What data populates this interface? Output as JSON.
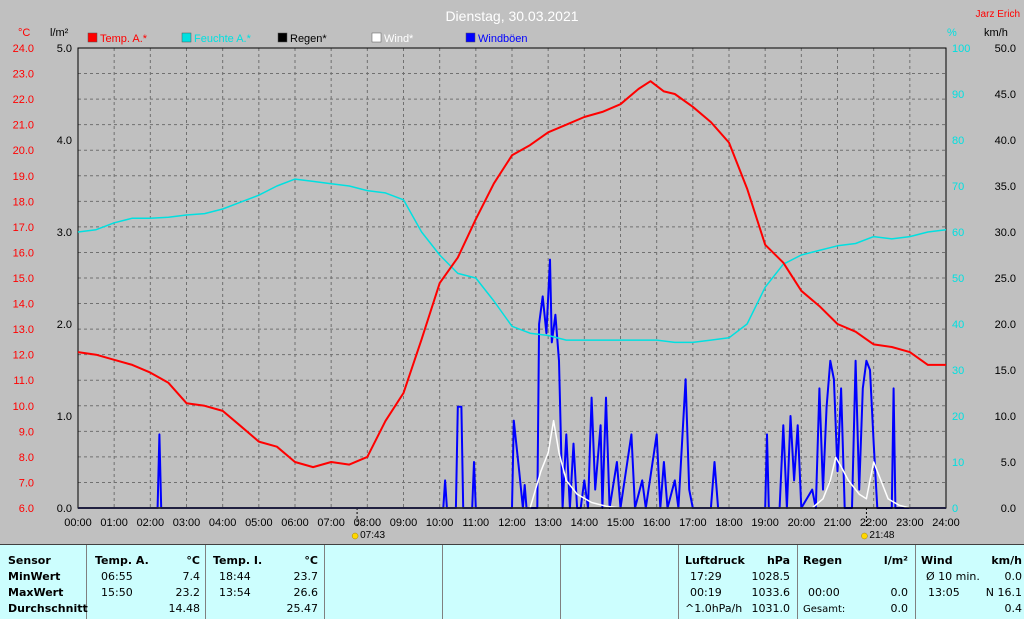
{
  "header": {
    "title": "Dienstag, 30.03.2021",
    "author": "Jarz Erich"
  },
  "legend": [
    {
      "label": "Temp. A.*",
      "color": "#ff0000"
    },
    {
      "label": "Feuchte A.*",
      "color": "#00e0e0"
    },
    {
      "label": "Regen*",
      "color": "#000000"
    },
    {
      "label": "Wind*",
      "color": "#ffffff"
    },
    {
      "label": "Windböen",
      "color": "#0000ff"
    }
  ],
  "axes": {
    "temp_unit": "°C",
    "rain_unit": "l/m²",
    "hum_unit": "%",
    "wind_unit": "km/h",
    "temp_ticks": [
      "24.0",
      "23.0",
      "22.0",
      "21.0",
      "20.0",
      "19.0",
      "18.0",
      "17.0",
      "16.0",
      "15.0",
      "14.0",
      "13.0",
      "12.0",
      "11.0",
      "10.0",
      "9.0",
      "8.0",
      "7.0",
      "6.0"
    ],
    "rain_ticks": [
      "5.0",
      "4.0",
      "3.0",
      "2.0",
      "1.0",
      "0.0"
    ],
    "hum_ticks": [
      "100",
      "90",
      "80",
      "70",
      "60",
      "50",
      "40",
      "30",
      "20",
      "10",
      "0"
    ],
    "wind_ticks": [
      "50.0",
      "45.0",
      "40.0",
      "35.0",
      "30.0",
      "25.0",
      "20.0",
      "15.0",
      "10.0",
      "5.0",
      "0.0"
    ],
    "x_ticks": [
      "00:00",
      "01:00",
      "02:00",
      "03:00",
      "04:00",
      "05:00",
      "06:00",
      "07:00",
      "08:00",
      "09:00",
      "10:00",
      "11:00",
      "12:00",
      "13:00",
      "14:00",
      "15:00",
      "16:00",
      "17:00",
      "18:00",
      "19:00",
      "20:00",
      "21:00",
      "22:00",
      "23:00",
      "24:00"
    ],
    "sunrise": "07:43",
    "sunset": "21:48"
  },
  "chart_data": {
    "type": "line",
    "title": "Dienstag, 30.03.2021",
    "x_unit": "hours",
    "temp_range": [
      6,
      24
    ],
    "humidity_range": [
      0,
      100
    ],
    "rain_range": [
      0,
      5
    ],
    "wind_range": [
      0,
      50
    ],
    "series": [
      {
        "name": "Temp. A.*",
        "unit": "°C",
        "color": "#ff0000",
        "points": [
          [
            0,
            12.1
          ],
          [
            0.5,
            12.0
          ],
          [
            1,
            11.8
          ],
          [
            1.5,
            11.6
          ],
          [
            2,
            11.3
          ],
          [
            2.5,
            10.9
          ],
          [
            3,
            10.1
          ],
          [
            3.5,
            10.0
          ],
          [
            4,
            9.8
          ],
          [
            4.5,
            9.2
          ],
          [
            5,
            8.6
          ],
          [
            5.5,
            8.4
          ],
          [
            6,
            7.8
          ],
          [
            6.5,
            7.6
          ],
          [
            7,
            7.8
          ],
          [
            7.5,
            7.7
          ],
          [
            8,
            8.0
          ],
          [
            8.5,
            9.4
          ],
          [
            9,
            10.5
          ],
          [
            9.5,
            12.6
          ],
          [
            10,
            14.8
          ],
          [
            10.5,
            15.8
          ],
          [
            11,
            17.3
          ],
          [
            11.5,
            18.7
          ],
          [
            12,
            19.8
          ],
          [
            12.5,
            20.2
          ],
          [
            13,
            20.7
          ],
          [
            13.5,
            21.0
          ],
          [
            14,
            21.3
          ],
          [
            14.5,
            21.5
          ],
          [
            15,
            21.8
          ],
          [
            15.5,
            22.4
          ],
          [
            15.83,
            22.7
          ],
          [
            16.2,
            22.3
          ],
          [
            16.5,
            22.2
          ],
          [
            17,
            21.7
          ],
          [
            17.5,
            21.1
          ],
          [
            18,
            20.3
          ],
          [
            18.5,
            18.5
          ],
          [
            19,
            16.3
          ],
          [
            19.5,
            15.6
          ],
          [
            20,
            14.5
          ],
          [
            20.5,
            13.9
          ],
          [
            21,
            13.2
          ],
          [
            21.5,
            12.9
          ],
          [
            22,
            12.4
          ],
          [
            22.5,
            12.3
          ],
          [
            23,
            12.1
          ],
          [
            23.5,
            11.6
          ],
          [
            24,
            11.6
          ]
        ]
      },
      {
        "name": "Feuchte A.*",
        "unit": "%",
        "color": "#00e0e0",
        "points": [
          [
            0,
            60
          ],
          [
            0.5,
            60.5
          ],
          [
            1,
            62
          ],
          [
            1.5,
            63
          ],
          [
            2,
            63
          ],
          [
            2.5,
            63.2
          ],
          [
            3,
            63.7
          ],
          [
            3.5,
            64
          ],
          [
            4,
            65
          ],
          [
            4.5,
            66.5
          ],
          [
            5,
            68
          ],
          [
            5.5,
            70
          ],
          [
            6,
            71.5
          ],
          [
            6.5,
            71
          ],
          [
            7,
            70.5
          ],
          [
            7.5,
            70
          ],
          [
            8,
            69
          ],
          [
            8.5,
            68.5
          ],
          [
            9,
            67
          ],
          [
            9.5,
            60
          ],
          [
            10,
            55
          ],
          [
            10.5,
            51
          ],
          [
            11,
            50
          ],
          [
            11.5,
            45
          ],
          [
            12,
            39.5
          ],
          [
            12.5,
            38
          ],
          [
            13,
            37.5
          ],
          [
            13.5,
            36.5
          ],
          [
            14,
            36.5
          ],
          [
            14.5,
            36.5
          ],
          [
            15,
            36.5
          ],
          [
            15.5,
            36.5
          ],
          [
            16,
            36.5
          ],
          [
            16.5,
            36
          ],
          [
            17,
            36
          ],
          [
            17.5,
            36.5
          ],
          [
            18,
            37
          ],
          [
            18.5,
            40
          ],
          [
            19,
            48
          ],
          [
            19.5,
            53
          ],
          [
            20,
            55
          ],
          [
            20.5,
            56
          ],
          [
            21,
            57
          ],
          [
            21.5,
            57.5
          ],
          [
            22,
            59
          ],
          [
            22.5,
            58.5
          ],
          [
            23,
            59
          ],
          [
            23.5,
            60
          ],
          [
            24,
            60.5
          ]
        ]
      },
      {
        "name": "Regen*",
        "unit": "l/m²",
        "color": "#000000",
        "points": [
          [
            0,
            0
          ],
          [
            24,
            0
          ]
        ]
      },
      {
        "name": "Wind*",
        "unit": "km/h",
        "color": "#ffffff",
        "points": [
          [
            0,
            0
          ],
          [
            12.5,
            0
          ],
          [
            12.8,
            4
          ],
          [
            13,
            6
          ],
          [
            13.15,
            9.5
          ],
          [
            13.3,
            6
          ],
          [
            13.5,
            3
          ],
          [
            13.8,
            1.5
          ],
          [
            14.2,
            0.6
          ],
          [
            14.6,
            0.2
          ],
          [
            15,
            0
          ],
          [
            20.3,
            0
          ],
          [
            20.6,
            1
          ],
          [
            20.8,
            3
          ],
          [
            20.95,
            5.5
          ],
          [
            21.1,
            4.5
          ],
          [
            21.3,
            3
          ],
          [
            21.6,
            1.5
          ],
          [
            21.8,
            1
          ],
          [
            21.9,
            3
          ],
          [
            22,
            5
          ],
          [
            22.2,
            3
          ],
          [
            22.4,
            1
          ],
          [
            22.7,
            0.3
          ],
          [
            23,
            0
          ],
          [
            24,
            0
          ]
        ]
      },
      {
        "name": "Windböen",
        "unit": "km/h",
        "color": "#0000ff",
        "points": [
          [
            0,
            0
          ],
          [
            2.2,
            0
          ],
          [
            2.25,
            8
          ],
          [
            2.3,
            0
          ],
          [
            10.1,
            0
          ],
          [
            10.15,
            3
          ],
          [
            10.2,
            0
          ],
          [
            10.45,
            0
          ],
          [
            10.5,
            11
          ],
          [
            10.6,
            11
          ],
          [
            10.65,
            0
          ],
          [
            10.9,
            0
          ],
          [
            10.95,
            5
          ],
          [
            11,
            0
          ],
          [
            12,
            0
          ],
          [
            12.05,
            9.5
          ],
          [
            12.2,
            4
          ],
          [
            12.3,
            0
          ],
          [
            12.35,
            2.5
          ],
          [
            12.4,
            0
          ],
          [
            12.7,
            0
          ],
          [
            12.75,
            20
          ],
          [
            12.85,
            23
          ],
          [
            12.95,
            19
          ],
          [
            13.05,
            27
          ],
          [
            13.1,
            18
          ],
          [
            13.2,
            21
          ],
          [
            13.3,
            16
          ],
          [
            13.4,
            0
          ],
          [
            13.5,
            8
          ],
          [
            13.6,
            0
          ],
          [
            13.7,
            7
          ],
          [
            13.8,
            0
          ],
          [
            13.9,
            0
          ],
          [
            14,
            3
          ],
          [
            14.1,
            0
          ],
          [
            14.2,
            12
          ],
          [
            14.3,
            2
          ],
          [
            14.45,
            9
          ],
          [
            14.5,
            0
          ],
          [
            14.6,
            12
          ],
          [
            14.7,
            0
          ],
          [
            14.9,
            5
          ],
          [
            15,
            0
          ],
          [
            15.3,
            8
          ],
          [
            15.4,
            0
          ],
          [
            15.6,
            3
          ],
          [
            15.7,
            0
          ],
          [
            16,
            8
          ],
          [
            16.1,
            0
          ],
          [
            16.2,
            5
          ],
          [
            16.3,
            0
          ],
          [
            16.5,
            3
          ],
          [
            16.6,
            0
          ],
          [
            16.8,
            14
          ],
          [
            16.9,
            2
          ],
          [
            17,
            0
          ],
          [
            17.5,
            0
          ],
          [
            17.6,
            5
          ],
          [
            17.7,
            0
          ],
          [
            19,
            0
          ],
          [
            19.05,
            8
          ],
          [
            19.1,
            0
          ],
          [
            19.4,
            0
          ],
          [
            19.5,
            9
          ],
          [
            19.6,
            0
          ],
          [
            19.7,
            10
          ],
          [
            19.8,
            3
          ],
          [
            19.9,
            9
          ],
          [
            20,
            0
          ],
          [
            20.3,
            2
          ],
          [
            20.4,
            0
          ],
          [
            20.5,
            13
          ],
          [
            20.6,
            2
          ],
          [
            20.7,
            11
          ],
          [
            20.8,
            16
          ],
          [
            20.9,
            14
          ],
          [
            21,
            4
          ],
          [
            21.1,
            13
          ],
          [
            21.2,
            0
          ],
          [
            21.4,
            0
          ],
          [
            21.5,
            16
          ],
          [
            21.6,
            2
          ],
          [
            21.7,
            13
          ],
          [
            21.8,
            16
          ],
          [
            21.9,
            15
          ],
          [
            22,
            7
          ],
          [
            22.1,
            0
          ],
          [
            22.5,
            0
          ],
          [
            22.55,
            13
          ],
          [
            22.6,
            0
          ],
          [
            24,
            0
          ]
        ]
      }
    ]
  },
  "table": {
    "sensor": {
      "title": "Sensor",
      "rows": [
        "MinWert",
        "MaxWert",
        "Durchschnitt"
      ]
    },
    "temp_a": {
      "title": "Temp. A.",
      "unit": "°C",
      "rows": [
        {
          "time": "06:55",
          "val": "7.4"
        },
        {
          "time": "15:50",
          "val": "23.2"
        },
        {
          "time": "",
          "val": "14.48"
        }
      ]
    },
    "temp_i": {
      "title": "Temp. I.",
      "unit": "°C",
      "rows": [
        {
          "time": "18:44",
          "val": "23.7"
        },
        {
          "time": "13:54",
          "val": "26.6"
        },
        {
          "time": "",
          "val": "25.47"
        }
      ]
    },
    "luftdruck": {
      "title": "Luftdruck",
      "unit": "hPa",
      "rows": [
        {
          "time": "17:29",
          "val": "1028.5"
        },
        {
          "time": "00:19",
          "val": "1033.6"
        },
        {
          "time": "^1.0hPa/h",
          "val": "1031.0"
        }
      ]
    },
    "regen": {
      "title": "Regen",
      "unit": "l/m²",
      "rows": [
        {
          "time": "",
          "val": ""
        },
        {
          "time": "00:00",
          "val": "0.0"
        },
        {
          "time": "Gesamt:",
          "val": "0.0"
        }
      ]
    },
    "wind": {
      "title": "Wind",
      "unit": "km/h",
      "rows": [
        {
          "time": "Ø 10 min.",
          "val": "0.0"
        },
        {
          "time": "13:05",
          "val": "N 16.1"
        },
        {
          "time": "",
          "val": "0.4"
        }
      ]
    }
  }
}
